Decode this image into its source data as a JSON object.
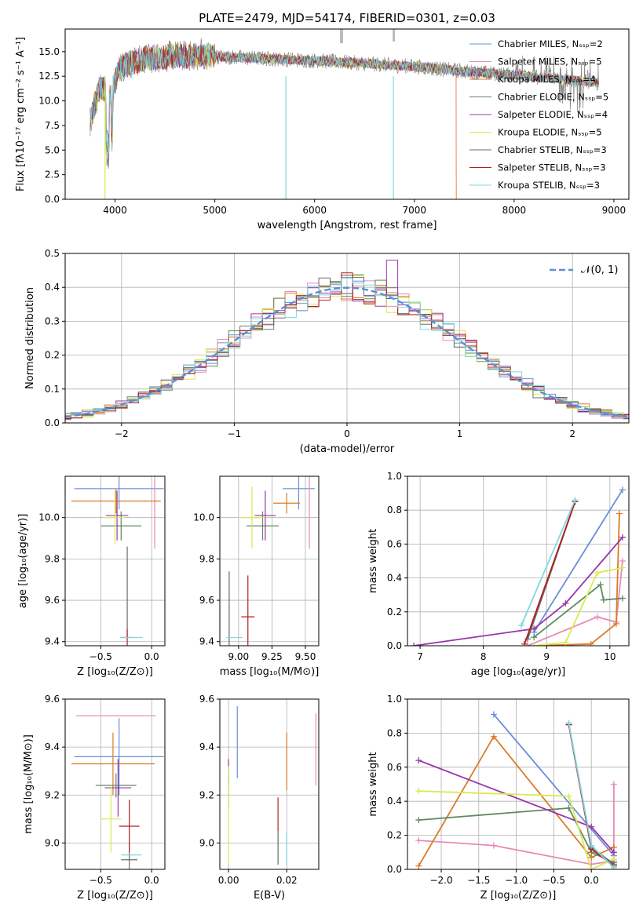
{
  "colors": {
    "Chabrier MILES": "#6a8fd8",
    "Salpeter MILES": "#e88ab8",
    "Kroupa MILES": "#d97b27",
    "Chabrier ELODIE": "#5e8a63",
    "Salpeter ELODIE": "#9b35ad",
    "Kroupa ELODIE": "#d8ea4f",
    "Chabrier STELIB": "#6b6b6b",
    "Salpeter STELIB": "#b02020",
    "Kroupa STELIB": "#7fd7e0",
    "normal": "#5a8fd6"
  },
  "chart_data": [
    {
      "id": "spectrum",
      "type": "line",
      "title": "PLATE=2479, MJD=54174, FIBERID=0301, z=0.03",
      "xlabel": "wavelength [Angstrom, rest frame]",
      "ylabel": "Flux [fλ10⁻¹⁷ erg cm⁻² s⁻¹ A⁻¹]",
      "xlim": [
        3500,
        9150
      ],
      "ylim": [
        0,
        17.3
      ],
      "xticks": [
        "4000",
        "5000",
        "6000",
        "7000",
        "8000",
        "9000"
      ],
      "yticks": [
        "0.0",
        "2.5",
        "5.0",
        "7.5",
        "10.0",
        "12.5",
        "15.0"
      ],
      "legend_position": "top-right",
      "legend": [
        "Chabrier MILES, Nₛₛₚ=2",
        "Salpeter MILES, Nₛₛₚ=5",
        "Kroupa MILES, Nₛₛₚ=4",
        "Chabrier ELODIE, Nₛₛₚ=5",
        "Salpeter ELODIE, Nₛₛₚ=4",
        "Kroupa ELODIE, Nₛₛₚ=5",
        "Chabrier STELIB, Nₛₛₚ=3",
        "Salpeter STELIB, Nₛₛₚ=3",
        "Kroupa STELIB, Nₛₛₚ=3"
      ],
      "data_range": [
        3750,
        8850
      ],
      "profile": [
        [
          3750,
          8.0
        ],
        [
          3850,
          11.5
        ],
        [
          3950,
          10.5
        ],
        [
          4050,
          13.5
        ],
        [
          4300,
          14.3
        ],
        [
          4600,
          14.6
        ],
        [
          5000,
          14.5
        ],
        [
          5500,
          14.3
        ],
        [
          6000,
          14.1
        ],
        [
          6500,
          13.8
        ],
        [
          7000,
          13.5
        ],
        [
          7500,
          13.0
        ],
        [
          8000,
          12.6
        ],
        [
          8500,
          12.2
        ],
        [
          8850,
          11.8
        ]
      ],
      "model_ends": {
        "Kroupa MILES": 7420,
        "Salpeter MILES": 7420
      }
    },
    {
      "id": "residuals",
      "type": "histogram",
      "xlabel": "(data-model)/error",
      "ylabel": "Normed distribution",
      "xlim": [
        -2.5,
        2.5
      ],
      "ylim": [
        0,
        0.5
      ],
      "xticks": [
        "−2",
        "−1",
        "0",
        "1",
        "2"
      ],
      "yticks": [
        "0.0",
        "0.1",
        "0.2",
        "0.3",
        "0.4",
        "0.5"
      ],
      "bin_width": 0.1,
      "legend": [
        "𝒩(0, 1)"
      ],
      "legend_position": "top-right",
      "peak_value": 0.48
    },
    {
      "id": "age_vs_Z",
      "type": "errorbar",
      "xlabel": "Z [log₁₀(Z/Z⊙)]",
      "ylabel": "age  [log₁₀(age/yr)]",
      "xlim": [
        -0.85,
        0.13
      ],
      "ylim": [
        9.38,
        10.2
      ],
      "xticks": [
        "−0.5",
        "0.0"
      ],
      "yticks": [
        "9.4",
        "9.6",
        "9.8",
        "10.0"
      ],
      "points": [
        {
          "model": "Chabrier MILES",
          "x": -0.32,
          "xerr": 0.44,
          "y": 10.14,
          "yerr": 0.1
        },
        {
          "model": "Salpeter MILES",
          "x": 0.03,
          "xerr": 0.0,
          "y": 10.05,
          "yerr": 0.2
        },
        {
          "model": "Kroupa MILES",
          "x": -0.35,
          "xerr": 0.44,
          "y": 10.08,
          "yerr": 0.06
        },
        {
          "model": "Chabrier ELODIE",
          "x": -0.3,
          "xerr": 0.2,
          "y": 9.96,
          "yerr": 0.07
        },
        {
          "model": "Salpeter ELODIE",
          "x": -0.34,
          "xerr": 0.11,
          "y": 10.01,
          "yerr": 0.12
        },
        {
          "model": "Kroupa ELODIE",
          "x": -0.36,
          "xerr": 0.1,
          "y": 10.0,
          "yerr": 0.13
        },
        {
          "model": "Chabrier STELIB",
          "x": -0.24,
          "xerr": 0.0,
          "y": 9.64,
          "yerr": 0.22
        },
        {
          "model": "Salpeter STELIB",
          "x": -0.24,
          "xerr": 0.05,
          "y": 9.42,
          "yerr": 0.04
        },
        {
          "model": "Kroupa STELIB",
          "x": -0.2,
          "xerr": 0.11,
          "y": 9.42,
          "yerr": 0.0
        }
      ]
    },
    {
      "id": "age_vs_mass",
      "type": "errorbar",
      "xlabel": "mass [log₁₀(M/M⊙)]",
      "ylabel": "",
      "xlim": [
        8.86,
        9.6
      ],
      "ylim": [
        9.38,
        10.2
      ],
      "xticks": [
        "9.00",
        "9.25",
        "9.50"
      ],
      "yticks": [
        "9.4",
        "9.6",
        "9.8",
        "10.0"
      ],
      "points": [
        {
          "model": "Chabrier MILES",
          "x": 9.45,
          "xerr": 0.12,
          "y": 10.14,
          "yerr": 0.1
        },
        {
          "model": "Salpeter MILES",
          "x": 9.53,
          "xerr": 0.0,
          "y": 10.05,
          "yerr": 0.2
        },
        {
          "model": "Kroupa MILES",
          "x": 9.36,
          "xerr": 0.1,
          "y": 10.07,
          "yerr": 0.05
        },
        {
          "model": "Chabrier ELODIE",
          "x": 9.18,
          "xerr": 0.12,
          "y": 9.96,
          "yerr": 0.07
        },
        {
          "model": "Salpeter ELODIE",
          "x": 9.2,
          "xerr": 0.08,
          "y": 10.01,
          "yerr": 0.12
        },
        {
          "model": "Kroupa ELODIE",
          "x": 9.1,
          "xerr": 0.1,
          "y": 10.0,
          "yerr": 0.15
        },
        {
          "model": "Chabrier STELIB",
          "x": 8.93,
          "xerr": 0.0,
          "y": 9.52,
          "yerr": 0.22
        },
        {
          "model": "Salpeter STELIB",
          "x": 9.07,
          "xerr": 0.05,
          "y": 9.52,
          "yerr": 0.2
        },
        {
          "model": "Kroupa STELIB",
          "x": 8.97,
          "xerr": 0.06,
          "y": 9.42,
          "yerr": 0.0
        }
      ]
    },
    {
      "id": "mass_weight_vs_age",
      "type": "line",
      "xlabel": "age  [log₁₀(age/yr)]",
      "ylabel": "mass weight",
      "xlim": [
        6.8,
        10.3
      ],
      "ylim": [
        0,
        1
      ],
      "xticks": [
        "7",
        "8",
        "9",
        "10"
      ],
      "yticks": [
        "0.0",
        "0.2",
        "0.4",
        "0.6",
        "0.8",
        "1.0"
      ],
      "series": [
        {
          "model": "Chabrier MILES",
          "x": [
            8.8,
            10.2
          ],
          "y": [
            0.08,
            0.92
          ]
        },
        {
          "model": "Salpeter MILES",
          "x": [
            8.7,
            9.8,
            10.1,
            10.2
          ],
          "y": [
            0.0,
            0.17,
            0.14,
            0.5
          ]
        },
        {
          "model": "Kroupa MILES",
          "x": [
            8.8,
            9.7,
            10.1,
            10.15
          ],
          "y": [
            0.0,
            0.01,
            0.13,
            0.78
          ]
        },
        {
          "model": "Chabrier ELODIE",
          "x": [
            8.8,
            9.85,
            9.9,
            10.2
          ],
          "y": [
            0.05,
            0.36,
            0.27,
            0.28
          ]
        },
        {
          "model": "Salpeter ELODIE",
          "x": [
            6.9,
            8.8,
            9.3,
            10.2
          ],
          "y": [
            0.0,
            0.1,
            0.25,
            0.64
          ]
        },
        {
          "model": "Kroupa ELODIE",
          "x": [
            8.8,
            9.3,
            9.8,
            10.2
          ],
          "y": [
            0.0,
            0.02,
            0.43,
            0.46
          ]
        },
        {
          "model": "Chabrier STELIB",
          "x": [
            8.7,
            9.45
          ],
          "y": [
            0.04,
            0.85
          ]
        },
        {
          "model": "Salpeter STELIB",
          "x": [
            8.65,
            9.45
          ],
          "y": [
            0.01,
            0.85
          ]
        },
        {
          "model": "Kroupa STELIB",
          "x": [
            8.6,
            9.45
          ],
          "y": [
            0.12,
            0.86
          ]
        }
      ]
    },
    {
      "id": "mass_vs_Z",
      "type": "errorbar",
      "xlabel": "Z [log₁₀(Z/Z⊙)]",
      "ylabel": "mass [log₁₀(M/M⊙)]",
      "xlim": [
        -0.85,
        0.13
      ],
      "ylim": [
        8.89,
        9.6
      ],
      "xticks": [
        "−0.5",
        "0.0"
      ],
      "yticks": [
        "9.0",
        "9.2",
        "9.4",
        "9.6"
      ],
      "points": [
        {
          "model": "Chabrier MILES",
          "x": -0.32,
          "xerr": 0.44,
          "y": 9.36,
          "yerr": 0.16
        },
        {
          "model": "Salpeter MILES",
          "x": -0.35,
          "xerr": 0.39,
          "y": 9.53,
          "yerr": 0.0
        },
        {
          "model": "Kroupa MILES",
          "x": -0.38,
          "xerr": 0.41,
          "y": 9.33,
          "yerr": 0.13
        },
        {
          "model": "Chabrier ELODIE",
          "x": -0.35,
          "xerr": 0.2,
          "y": 9.24,
          "yerr": 0.05
        },
        {
          "model": "Salpeter ELODIE",
          "x": -0.33,
          "xerr": 0.13,
          "y": 9.23,
          "yerr": 0.12
        },
        {
          "model": "Kroupa ELODIE",
          "x": -0.4,
          "xerr": 0.1,
          "y": 9.1,
          "yerr": 0.14
        },
        {
          "model": "Chabrier STELIB",
          "x": -0.22,
          "xerr": 0.08,
          "y": 8.93,
          "yerr": 0.07
        },
        {
          "model": "Salpeter STELIB",
          "x": -0.22,
          "xerr": 0.1,
          "y": 9.07,
          "yerr": 0.11
        },
        {
          "model": "Kroupa STELIB",
          "x": -0.2,
          "xerr": 0.1,
          "y": 8.95,
          "yerr": 0.0
        }
      ]
    },
    {
      "id": "mass_vs_EBV",
      "type": "errorbar",
      "xlabel": "E(B-V)",
      "ylabel": "",
      "xlim": [
        -0.003,
        0.031
      ],
      "ylim": [
        8.89,
        9.6
      ],
      "xticks": [
        "0.00",
        "0.02"
      ],
      "yticks": [
        "9.0",
        "9.2",
        "9.4",
        "9.6"
      ],
      "points": [
        {
          "model": "Chabrier MILES",
          "x": 0.003,
          "xerr": 0,
          "y": 9.42,
          "yerr": 0.15
        },
        {
          "model": "Salpeter MILES",
          "x": 0.03,
          "xerr": 0,
          "y": 9.39,
          "yerr": 0.15
        },
        {
          "model": "Kroupa MILES",
          "x": 0.02,
          "xerr": 0,
          "y": 9.34,
          "yerr": 0.12
        },
        {
          "model": "Chabrier ELODIE",
          "x": 0.0,
          "xerr": 0,
          "y": 9.22,
          "yerr": 0.08
        },
        {
          "model": "Salpeter ELODIE",
          "x": 0.0,
          "xerr": 0,
          "y": 9.3,
          "yerr": 0.05
        },
        {
          "model": "Kroupa ELODIE",
          "x": 0.0,
          "xerr": 0,
          "y": 9.12,
          "yerr": 0.2
        },
        {
          "model": "Chabrier STELIB",
          "x": 0.017,
          "xerr": 0,
          "y": 8.98,
          "yerr": 0.07
        },
        {
          "model": "Salpeter STELIB",
          "x": 0.017,
          "xerr": 0,
          "y": 9.12,
          "yerr": 0.07
        },
        {
          "model": "Kroupa STELIB",
          "x": 0.02,
          "xerr": 0,
          "y": 8.98,
          "yerr": 0.07
        }
      ]
    },
    {
      "id": "mass_weight_vs_Z",
      "type": "line",
      "xlabel": "Z [log₁₀(Z/Z⊙)]",
      "ylabel": "mass weight",
      "xlim": [
        -2.45,
        0.5
      ],
      "ylim": [
        0,
        1
      ],
      "xticks": [
        "−2.0",
        "−1.5",
        "−1.0",
        "−0.5",
        "0.0"
      ],
      "yticks": [
        "0.0",
        "0.2",
        "0.4",
        "0.6",
        "0.8",
        "1.0"
      ],
      "series": [
        {
          "model": "Chabrier MILES",
          "x": [
            -1.3,
            0.3
          ],
          "y": [
            0.91,
            0.08
          ]
        },
        {
          "model": "Salpeter MILES",
          "x": [
            -2.3,
            -1.3,
            0.0,
            0.3,
            0.3
          ],
          "y": [
            0.17,
            0.14,
            0.03,
            0.05,
            0.5
          ]
        },
        {
          "model": "Kroupa MILES",
          "x": [
            -2.3,
            -1.3,
            0.0,
            0.3
          ],
          "y": [
            0.02,
            0.78,
            0.07,
            0.13
          ]
        },
        {
          "model": "Chabrier ELODIE",
          "x": [
            -2.3,
            -0.3,
            0.0,
            0.3
          ],
          "y": [
            0.29,
            0.36,
            0.1,
            0.04
          ]
        },
        {
          "model": "Salpeter ELODIE",
          "x": [
            -2.3,
            0.0,
            0.3
          ],
          "y": [
            0.64,
            0.25,
            0.1
          ]
        },
        {
          "model": "Kroupa ELODIE",
          "x": [
            -2.3,
            -0.3,
            0.0,
            0.3
          ],
          "y": [
            0.46,
            0.43,
            0.0,
            0.06
          ]
        },
        {
          "model": "Chabrier STELIB",
          "x": [
            -0.3,
            0.0,
            0.3
          ],
          "y": [
            0.85,
            0.13,
            0.03
          ]
        },
        {
          "model": "Salpeter STELIB",
          "x": [
            -0.3,
            0.0,
            0.3
          ],
          "y": [
            0.85,
            0.12,
            0.02
          ]
        },
        {
          "model": "Kroupa STELIB",
          "x": [
            -0.3,
            0.0,
            0.3
          ],
          "y": [
            0.86,
            0.14,
            0.01
          ]
        }
      ]
    }
  ]
}
